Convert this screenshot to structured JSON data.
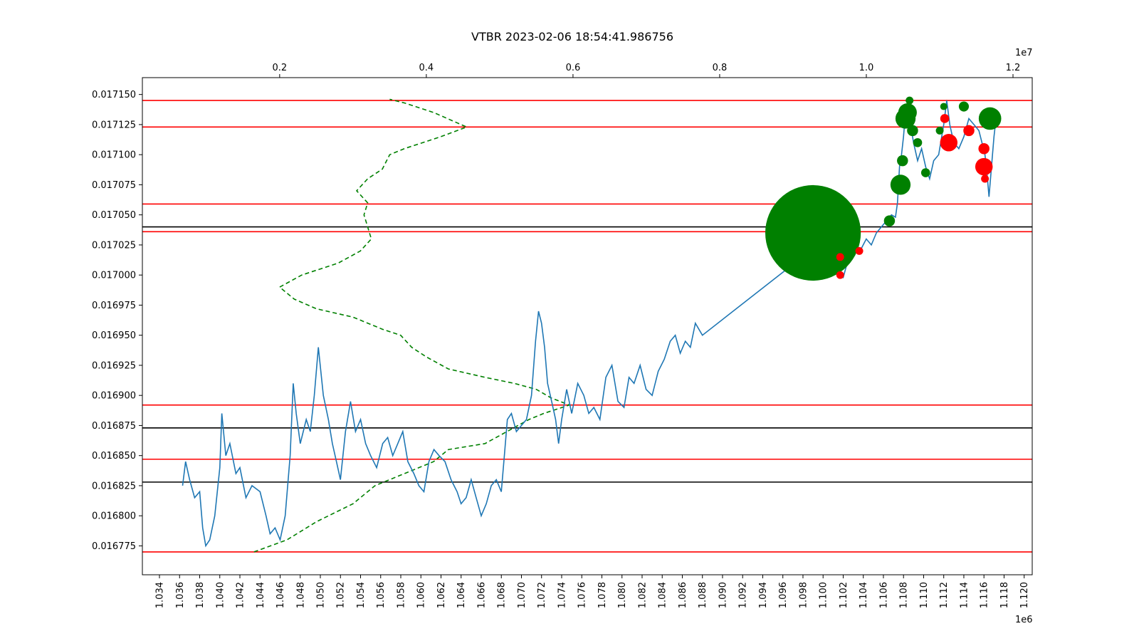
{
  "chart_data": {
    "type": "line",
    "title": "VTBR 2023-02-06 18:54:41.986756",
    "x_axis": {
      "ticks": [
        "1.034",
        "1.036",
        "1.038",
        "1.040",
        "1.042",
        "1.044",
        "1.046",
        "1.048",
        "1.050",
        "1.052",
        "1.054",
        "1.056",
        "1.058",
        "1.060",
        "1.062",
        "1.064",
        "1.066",
        "1.068",
        "1.070",
        "1.072",
        "1.074",
        "1.076",
        "1.078",
        "1.080",
        "1.082",
        "1.084",
        "1.086",
        "1.088",
        "1.090",
        "1.092",
        "1.094",
        "1.096",
        "1.098",
        "1.100",
        "1.102",
        "1.104",
        "1.106",
        "1.108",
        "1.110",
        "1.112",
        "1.114",
        "1.116",
        "1.118",
        "1.120"
      ],
      "range": [
        1.0323,
        1.1208
      ],
      "offset_label": "1e6"
    },
    "x_top_axis": {
      "ticks": [
        "0.2",
        "0.4",
        "0.6",
        "0.8",
        "1.0",
        "1.2"
      ],
      "range": [
        0.0128,
        1.2262
      ],
      "offset_label": "1e7"
    },
    "y_axis": {
      "ticks": [
        "0.016775",
        "0.016800",
        "0.016825",
        "0.016850",
        "0.016875",
        "0.016900",
        "0.016925",
        "0.016950",
        "0.016975",
        "0.017000",
        "0.017025",
        "0.017050",
        "0.017075",
        "0.017100",
        "0.017125",
        "0.017150"
      ],
      "range": [
        0.016751,
        0.017164
      ]
    },
    "price_series": {
      "name": "",
      "color": "#1f77b4",
      "points": [
        [
          1.0363,
          0.016825
        ],
        [
          1.0366,
          0.016845
        ],
        [
          1.037,
          0.01683
        ],
        [
          1.0375,
          0.016815
        ],
        [
          1.038,
          0.01682
        ],
        [
          1.0383,
          0.01679
        ],
        [
          1.0386,
          0.016775
        ],
        [
          1.039,
          0.01678
        ],
        [
          1.0395,
          0.0168
        ],
        [
          1.04,
          0.01684
        ],
        [
          1.0402,
          0.016885
        ],
        [
          1.0406,
          0.01685
        ],
        [
          1.041,
          0.01686
        ],
        [
          1.0416,
          0.016835
        ],
        [
          1.042,
          0.01684
        ],
        [
          1.0426,
          0.016815
        ],
        [
          1.0432,
          0.016825
        ],
        [
          1.044,
          0.01682
        ],
        [
          1.0446,
          0.0168
        ],
        [
          1.045,
          0.016785
        ],
        [
          1.0455,
          0.01679
        ],
        [
          1.046,
          0.01678
        ],
        [
          1.0465,
          0.0168
        ],
        [
          1.047,
          0.01685
        ],
        [
          1.0473,
          0.01691
        ],
        [
          1.0476,
          0.016885
        ],
        [
          1.048,
          0.01686
        ],
        [
          1.0486,
          0.01688
        ],
        [
          1.049,
          0.01687
        ],
        [
          1.0494,
          0.0169
        ],
        [
          1.0498,
          0.01694
        ],
        [
          1.0503,
          0.0169
        ],
        [
          1.0508,
          0.01688
        ],
        [
          1.0512,
          0.01686
        ],
        [
          1.0516,
          0.016845
        ],
        [
          1.052,
          0.01683
        ],
        [
          1.0525,
          0.01687
        ],
        [
          1.053,
          0.016895
        ],
        [
          1.0535,
          0.01687
        ],
        [
          1.054,
          0.01688
        ],
        [
          1.0545,
          0.01686
        ],
        [
          1.055,
          0.01685
        ],
        [
          1.0556,
          0.01684
        ],
        [
          1.0562,
          0.01686
        ],
        [
          1.0567,
          0.016865
        ],
        [
          1.0572,
          0.01685
        ],
        [
          1.0577,
          0.01686
        ],
        [
          1.0582,
          0.01687
        ],
        [
          1.0587,
          0.016845
        ],
        [
          1.0593,
          0.016835
        ],
        [
          1.0598,
          0.016825
        ],
        [
          1.0603,
          0.01682
        ],
        [
          1.0608,
          0.016845
        ],
        [
          1.0613,
          0.016855
        ],
        [
          1.0618,
          0.01685
        ],
        [
          1.0624,
          0.016845
        ],
        [
          1.063,
          0.01683
        ],
        [
          1.0636,
          0.01682
        ],
        [
          1.064,
          0.01681
        ],
        [
          1.0645,
          0.016815
        ],
        [
          1.065,
          0.01683
        ],
        [
          1.0655,
          0.016815
        ],
        [
          1.066,
          0.0168
        ],
        [
          1.0665,
          0.01681
        ],
        [
          1.067,
          0.016825
        ],
        [
          1.0675,
          0.01683
        ],
        [
          1.068,
          0.01682
        ],
        [
          1.0683,
          0.01685
        ],
        [
          1.0686,
          0.01688
        ],
        [
          1.069,
          0.016885
        ],
        [
          1.0695,
          0.01687
        ],
        [
          1.07,
          0.016875
        ],
        [
          1.0705,
          0.01688
        ],
        [
          1.071,
          0.0169
        ],
        [
          1.0714,
          0.016945
        ],
        [
          1.0717,
          0.01697
        ],
        [
          1.072,
          0.01696
        ],
        [
          1.0723,
          0.01694
        ],
        [
          1.0726,
          0.01691
        ],
        [
          1.073,
          0.016895
        ],
        [
          1.0734,
          0.01688
        ],
        [
          1.0737,
          0.01686
        ],
        [
          1.074,
          0.01688
        ],
        [
          1.0745,
          0.016905
        ],
        [
          1.075,
          0.016885
        ],
        [
          1.0756,
          0.01691
        ],
        [
          1.0762,
          0.0169
        ],
        [
          1.0767,
          0.016885
        ],
        [
          1.0772,
          0.01689
        ],
        [
          1.0778,
          0.01688
        ],
        [
          1.0784,
          0.016915
        ],
        [
          1.079,
          0.016925
        ],
        [
          1.0796,
          0.016895
        ],
        [
          1.0802,
          0.01689
        ],
        [
          1.0807,
          0.016915
        ],
        [
          1.0812,
          0.01691
        ],
        [
          1.0818,
          0.016925
        ],
        [
          1.0824,
          0.016905
        ],
        [
          1.083,
          0.0169
        ],
        [
          1.0836,
          0.01692
        ],
        [
          1.0842,
          0.01693
        ],
        [
          1.0848,
          0.016945
        ],
        [
          1.0853,
          0.01695
        ],
        [
          1.0858,
          0.016935
        ],
        [
          1.0863,
          0.016945
        ],
        [
          1.0868,
          0.01694
        ],
        [
          1.0873,
          0.01696
        ],
        [
          1.088,
          0.01695
        ],
        [
          1.0987,
          0.01702
        ],
        [
          1.0992,
          0.01703
        ],
        [
          1.0996,
          0.01704
        ],
        [
          1.1,
          0.01703
        ],
        [
          1.1005,
          0.017065
        ],
        [
          1.101,
          0.01706
        ],
        [
          1.1014,
          0.017015
        ],
        [
          1.1017,
          0.017
        ],
        [
          1.102,
          0.016998
        ],
        [
          1.1024,
          0.01701
        ],
        [
          1.1028,
          0.01703
        ],
        [
          1.1033,
          0.01702
        ],
        [
          1.1038,
          0.017022
        ],
        [
          1.1043,
          0.01703
        ],
        [
          1.1048,
          0.017025
        ],
        [
          1.1053,
          0.017035
        ],
        [
          1.1058,
          0.01704
        ],
        [
          1.1063,
          0.017045
        ],
        [
          1.1068,
          0.01705
        ],
        [
          1.1072,
          0.017048
        ],
        [
          1.1074,
          0.01706
        ],
        [
          1.1076,
          0.01709
        ],
        [
          1.1078,
          0.0171
        ],
        [
          1.108,
          0.017115
        ],
        [
          1.1082,
          0.017135
        ],
        [
          1.1084,
          0.01714
        ],
        [
          1.1086,
          0.01713
        ],
        [
          1.109,
          0.01711
        ],
        [
          1.1094,
          0.017095
        ],
        [
          1.1098,
          0.017105
        ],
        [
          1.1102,
          0.01709
        ],
        [
          1.1106,
          0.01708
        ],
        [
          1.111,
          0.017095
        ],
        [
          1.1115,
          0.0171
        ],
        [
          1.112,
          0.017125
        ],
        [
          1.1123,
          0.017145
        ],
        [
          1.1126,
          0.017125
        ],
        [
          1.113,
          0.01711
        ],
        [
          1.1135,
          0.017105
        ],
        [
          1.114,
          0.017115
        ],
        [
          1.1145,
          0.01713
        ],
        [
          1.115,
          0.017125
        ],
        [
          1.1155,
          0.01712
        ],
        [
          1.1158,
          0.01711
        ],
        [
          1.1161,
          0.0171
        ],
        [
          1.1163,
          0.017085
        ],
        [
          1.1165,
          0.017065
        ],
        [
          1.1168,
          0.017095
        ],
        [
          1.117,
          0.017115
        ],
        [
          1.1172,
          0.01713
        ]
      ]
    },
    "volume_profile": {
      "name": "",
      "color": "#008000",
      "style": "dashed",
      "axis": "top",
      "points": [
        [
          0.165,
          0.01677
        ],
        [
          0.21,
          0.01678
        ],
        [
          0.25,
          0.016795
        ],
        [
          0.3,
          0.01681
        ],
        [
          0.33,
          0.016825
        ],
        [
          0.37,
          0.016835
        ],
        [
          0.41,
          0.016845
        ],
        [
          0.43,
          0.016855
        ],
        [
          0.48,
          0.01686
        ],
        [
          0.51,
          0.01687
        ],
        [
          0.54,
          0.01688
        ],
        [
          0.56,
          0.016885
        ],
        [
          0.595,
          0.016892
        ],
        [
          0.57,
          0.016898
        ],
        [
          0.55,
          0.016905
        ],
        [
          0.52,
          0.01691
        ],
        [
          0.48,
          0.016915
        ],
        [
          0.43,
          0.016922
        ],
        [
          0.4,
          0.016932
        ],
        [
          0.38,
          0.01694
        ],
        [
          0.365,
          0.01695
        ],
        [
          0.34,
          0.016955
        ],
        [
          0.3,
          0.016965
        ],
        [
          0.25,
          0.016972
        ],
        [
          0.22,
          0.01698
        ],
        [
          0.2,
          0.01699
        ],
        [
          0.23,
          0.017
        ],
        [
          0.28,
          0.01701
        ],
        [
          0.31,
          0.01702
        ],
        [
          0.325,
          0.01703
        ],
        [
          0.32,
          0.01704
        ],
        [
          0.315,
          0.01705
        ],
        [
          0.32,
          0.01706
        ],
        [
          0.305,
          0.01707
        ],
        [
          0.32,
          0.01708
        ],
        [
          0.34,
          0.017088
        ],
        [
          0.35,
          0.0171
        ],
        [
          0.37,
          0.017105
        ],
        [
          0.42,
          0.017115
        ],
        [
          0.455,
          0.017123
        ],
        [
          0.41,
          0.017135
        ],
        [
          0.37,
          0.017143
        ],
        [
          0.35,
          0.017146
        ]
      ]
    },
    "trades": [
      {
        "x": 1.099,
        "y": 0.017035,
        "size": 4500,
        "color": "#008000"
      },
      {
        "x": 1.1017,
        "y": 0.017015,
        "size": 30,
        "color": "#ff0000"
      },
      {
        "x": 1.1017,
        "y": 0.017,
        "size": 30,
        "color": "#ff0000"
      },
      {
        "x": 1.1036,
        "y": 0.01702,
        "size": 30,
        "color": "#ff0000"
      },
      {
        "x": 1.1066,
        "y": 0.017045,
        "size": 60,
        "color": "#008000"
      },
      {
        "x": 1.1077,
        "y": 0.017075,
        "size": 200,
        "color": "#008000"
      },
      {
        "x": 1.1079,
        "y": 0.017095,
        "size": 60,
        "color": "#008000"
      },
      {
        "x": 1.1082,
        "y": 0.01713,
        "size": 200,
        "color": "#008000"
      },
      {
        "x": 1.1084,
        "y": 0.017135,
        "size": 170,
        "color": "#008000"
      },
      {
        "x": 1.1086,
        "y": 0.017145,
        "size": 30,
        "color": "#008000"
      },
      {
        "x": 1.1089,
        "y": 0.01712,
        "size": 60,
        "color": "#008000"
      },
      {
        "x": 1.1094,
        "y": 0.01711,
        "size": 40,
        "color": "#008000"
      },
      {
        "x": 1.1102,
        "y": 0.017085,
        "size": 40,
        "color": "#008000"
      },
      {
        "x": 1.1116,
        "y": 0.01712,
        "size": 30,
        "color": "#008000"
      },
      {
        "x": 1.112,
        "y": 0.01714,
        "size": 25,
        "color": "#008000"
      },
      {
        "x": 1.1121,
        "y": 0.01713,
        "size": 40,
        "color": "#ff0000"
      },
      {
        "x": 1.1125,
        "y": 0.01711,
        "size": 150,
        "color": "#ff0000"
      },
      {
        "x": 1.114,
        "y": 0.01714,
        "size": 50,
        "color": "#008000"
      },
      {
        "x": 1.1145,
        "y": 0.01712,
        "size": 60,
        "color": "#ff0000"
      },
      {
        "x": 1.116,
        "y": 0.01709,
        "size": 150,
        "color": "#ff0000"
      },
      {
        "x": 1.116,
        "y": 0.017105,
        "size": 60,
        "color": "#ff0000"
      },
      {
        "x": 1.1161,
        "y": 0.01708,
        "size": 30,
        "color": "#ff0000"
      },
      {
        "x": 1.1166,
        "y": 0.01713,
        "size": 250,
        "color": "#008000"
      }
    ],
    "levels_red": [
      0.017145,
      0.017123,
      0.017059,
      0.017036,
      0.016892,
      0.016847,
      0.01677
    ],
    "levels_black": [
      0.01704,
      0.016873,
      0.016828
    ],
    "grid": false,
    "legend": "none"
  }
}
